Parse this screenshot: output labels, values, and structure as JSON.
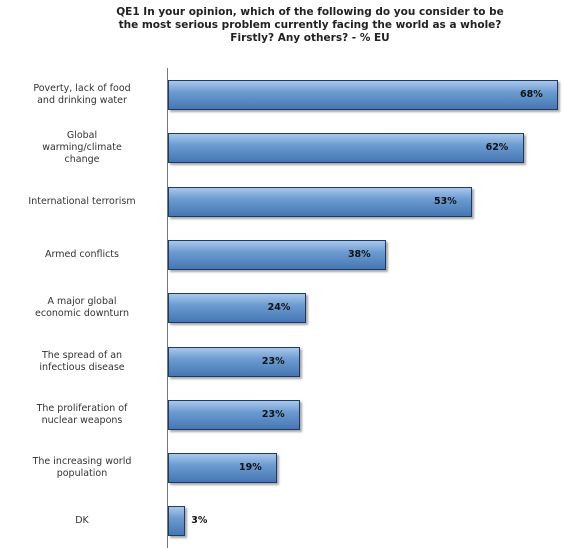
{
  "chart_data": {
    "type": "bar",
    "orientation": "horizontal",
    "title": "QE1 In your opinion, which of the following do you consider to be\nthe most serious problem currently facing the world as a whole?\nFirstly? Any others? - % EU",
    "categories": [
      "Poverty, lack of food\nand drinking water",
      "Global\nwarming/climate\nchange",
      "International terrorism",
      "Armed conflicts",
      "A major global\neconomic downturn",
      "The spread of an\ninfectious disease",
      "The proliferation of\nnuclear weapons",
      "The increasing world\npopulation",
      "DK"
    ],
    "values": [
      68,
      62,
      53,
      38,
      24,
      23,
      23,
      19,
      3
    ],
    "value_labels": [
      "68%",
      "62%",
      "53%",
      "38%",
      "24%",
      "23%",
      "23%",
      "19%",
      "3%"
    ],
    "color": "#5b8cc8"
  }
}
